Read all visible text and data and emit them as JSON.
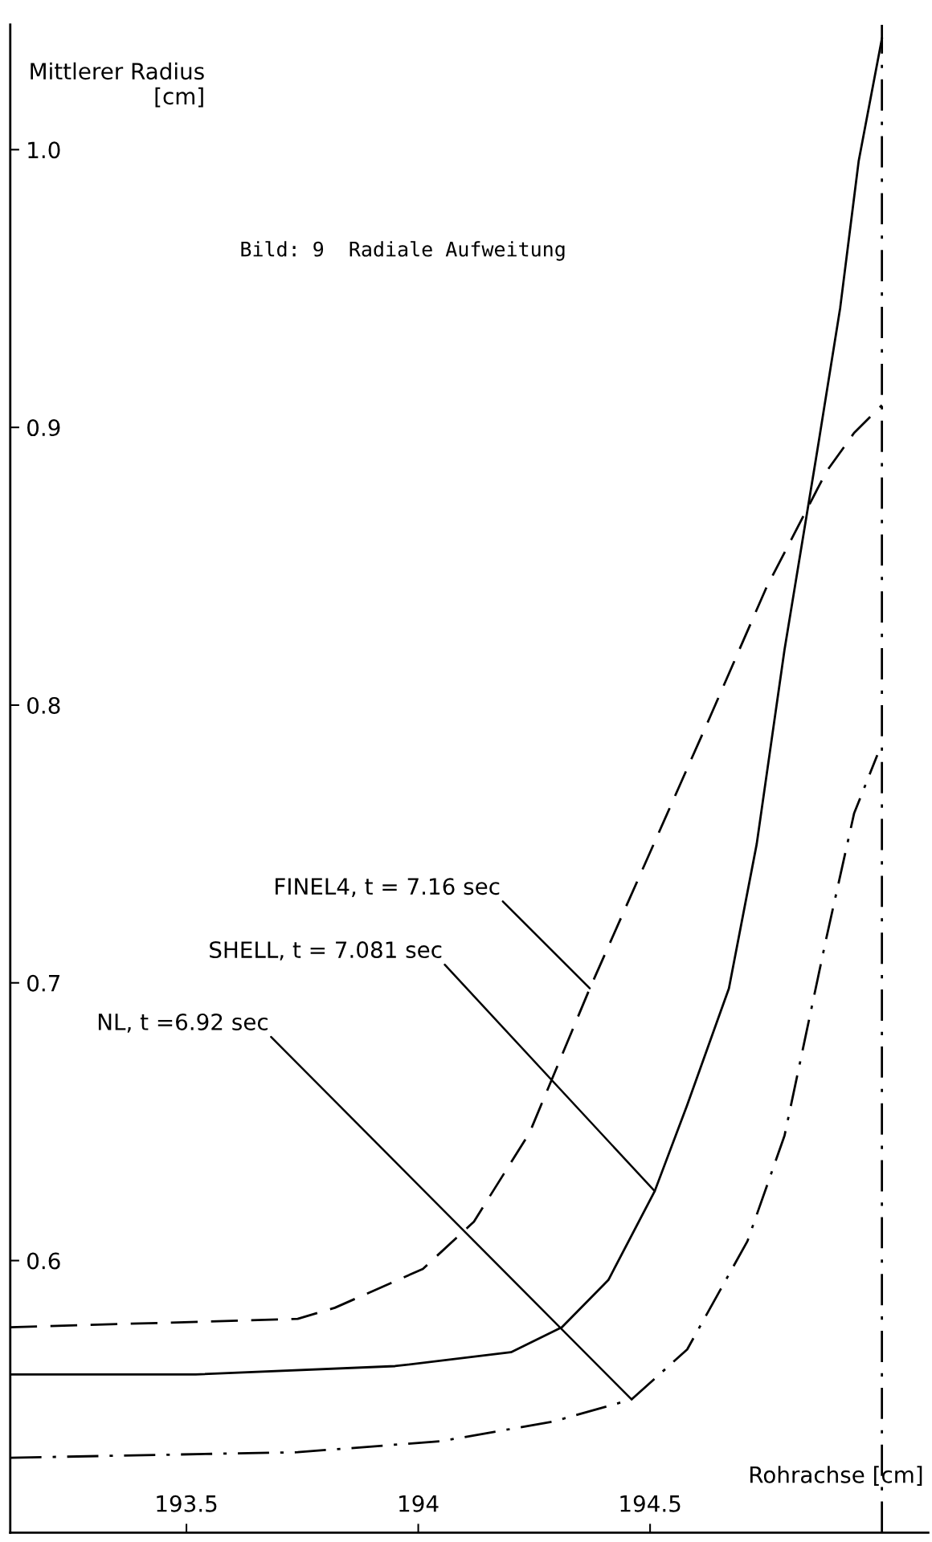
{
  "chart_data": {
    "type": "line",
    "title": "Bild: 9  Radiale Aufweitung",
    "xlabel": "Rohrachse [cm]",
    "ylabel": "Mittlerer Radius\n[cm]",
    "xlim": [
      193.12,
      195.1
    ],
    "ylim": [
      0.502,
      1.045
    ],
    "xticks": [
      193.5,
      194,
      194.5
    ],
    "yticks": [
      0.6,
      0.7,
      0.8,
      0.9,
      {
        "value": 1.0,
        "label": "1.0"
      }
    ],
    "grid": false,
    "legend": false,
    "marker": "none",
    "series": [
      {
        "color": "#000000",
        "line_style": "dashed",
        "x": [
          193.12,
          193.74,
          193.82,
          194.01,
          194.12,
          194.24,
          194.37,
          194.5,
          194.63,
          194.75,
          194.88,
          194.94,
          195.0
        ],
        "values": [
          0.576,
          0.579,
          0.583,
          0.597,
          0.614,
          0.646,
          0.698,
          0.747,
          0.796,
          0.842,
          0.884,
          0.898,
          0.908
        ]
      },
      {
        "color": "#000000",
        "line_style": "solid",
        "x": [
          193.12,
          193.52,
          193.95,
          194.2,
          194.31,
          194.41,
          194.51,
          194.58,
          194.67,
          194.73,
          194.79,
          194.86,
          194.91,
          194.95,
          195.0
        ],
        "values": [
          0.559,
          0.559,
          0.562,
          0.567,
          0.576,
          0.593,
          0.625,
          0.656,
          0.698,
          0.75,
          0.82,
          0.891,
          0.943,
          0.996,
          1.04
        ]
      },
      {
        "color": "#000000",
        "line_style": "dashdot",
        "x": [
          193.12,
          193.74,
          194.05,
          194.29,
          194.46,
          194.58,
          194.71,
          194.79,
          194.88,
          194.94,
          194.99
        ],
        "values": [
          0.529,
          0.531,
          0.535,
          0.542,
          0.55,
          0.568,
          0.607,
          0.645,
          0.716,
          0.761,
          0.782
        ]
      }
    ],
    "ref_lines": [
      {
        "axis": "x",
        "value": 195.0,
        "color": "#000000",
        "line_style": "dashdot"
      }
    ],
    "annotations": [
      {
        "text": "FINEL4, t = 7.16 sec",
        "x": 194.37,
        "y": 0.698
      },
      {
        "text": "SHELL, t = 7.081 sec",
        "x": 194.51,
        "y": 0.625
      },
      {
        "text": "NL, t =6.92 sec",
        "x": 194.46,
        "y": 0.55
      }
    ]
  }
}
